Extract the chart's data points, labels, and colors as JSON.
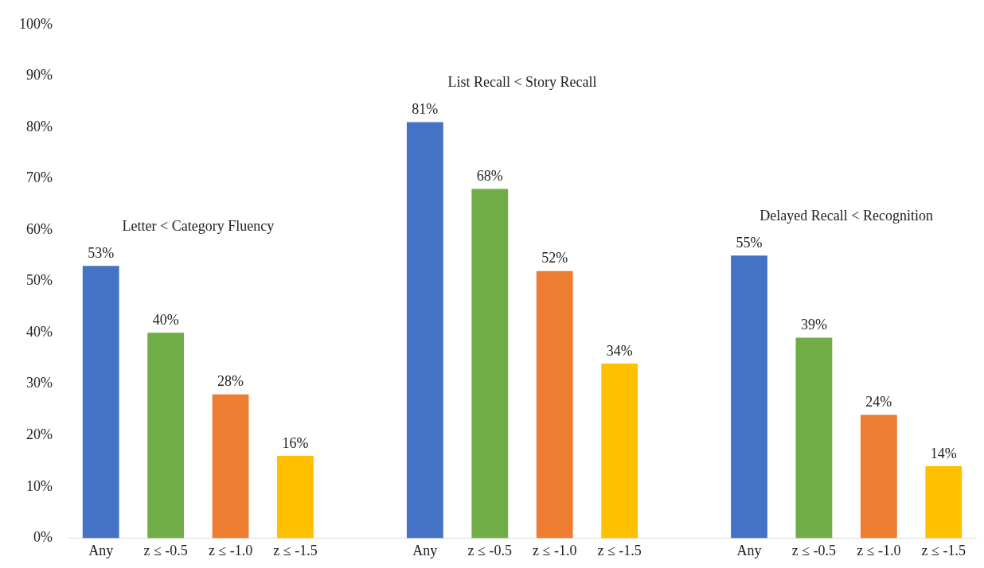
{
  "chart_data": {
    "type": "bar",
    "categories": [
      "Any",
      "z ≤ -0.5",
      "z ≤ -1.0",
      "z ≤ -1.5",
      null,
      "Any",
      "z ≤ -0.5",
      "z ≤ -1.0",
      "z ≤ -1.5",
      null,
      "Any",
      "z ≤ -0.5",
      "z ≤ -1.0",
      "z ≤ -1.5"
    ],
    "values": [
      53,
      40,
      28,
      16,
      null,
      81,
      68,
      52,
      34,
      null,
      55,
      39,
      24,
      14
    ],
    "colors": [
      "#4472c4",
      "#70ad47",
      "#ed7d31",
      "#ffc000",
      null,
      "#4472c4",
      "#70ad47",
      "#ed7d31",
      "#ffc000",
      null,
      "#4472c4",
      "#70ad47",
      "#ed7d31",
      "#ffc000"
    ],
    "value_labels": [
      "53%",
      "40%",
      "28%",
      "16%",
      null,
      "81%",
      "68%",
      "52%",
      "34%",
      null,
      "55%",
      "39%",
      "24%",
      "14%"
    ],
    "ylim": [
      0,
      100
    ],
    "yticks": [
      {
        "value": 0,
        "label": "0%"
      },
      {
        "value": 10,
        "label": "10%"
      },
      {
        "value": 20,
        "label": "20%"
      },
      {
        "value": 30,
        "label": "30%"
      },
      {
        "value": 40,
        "label": "40%"
      },
      {
        "value": 50,
        "label": "50%"
      },
      {
        "value": 60,
        "label": "60%"
      },
      {
        "value": 70,
        "label": "70%"
      },
      {
        "value": 80,
        "label": "80%"
      },
      {
        "value": 90,
        "label": "90%"
      },
      {
        "value": 100,
        "label": "100%"
      }
    ],
    "annotations": [
      "Letter < Category Fluency",
      "List Recall < Story Recall",
      "Delayed Recall < Recognition"
    ],
    "grid": false,
    "legend": false
  }
}
